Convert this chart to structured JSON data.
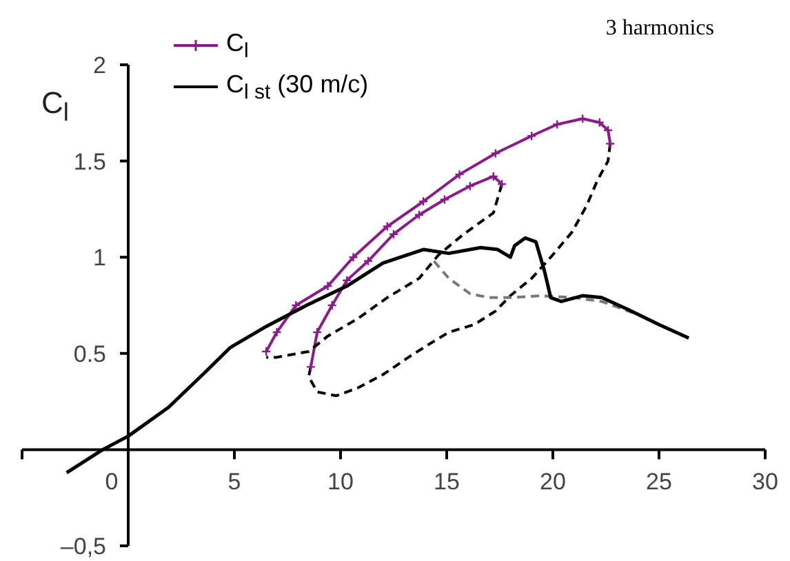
{
  "chart_data": {
    "type": "line",
    "ylabel": "C$_{l}$",
    "annotations": [
      "3 harmonics"
    ],
    "xlim": [
      -5,
      30
    ],
    "xticks": [
      {
        "value": -5,
        "label": null
      },
      0,
      5,
      10,
      15,
      20,
      25,
      30
    ],
    "ylim": [
      -0.5,
      2
    ],
    "yticks": [
      {
        "value": -0.5,
        "label": "–0,5"
      },
      0.5,
      1,
      1.5,
      2
    ],
    "grid": false,
    "legend": "top left",
    "series": [
      {
        "name": "C$_{l}$",
        "color": "#8b1a8b",
        "marker": "cross",
        "line_style": "solid",
        "x": [
          6.5,
          7,
          7.9,
          9.4,
          10.6,
          12.2,
          13.9,
          15.6,
          17.3,
          19,
          20.2,
          21.4,
          22.2,
          22.6,
          22.7
        ],
        "values": [
          0.51,
          0.61,
          0.75,
          0.85,
          1.0,
          1.16,
          1.29,
          1.43,
          1.54,
          1.63,
          1.69,
          1.72,
          1.7,
          1.66,
          1.59
        ]
      },
      {
        "color": "#8b1a8b",
        "marker": "cross",
        "line_style": "solid",
        "x": [
          8.6,
          8.9,
          9.6,
          10.3,
          11.3,
          12.5,
          13.7,
          14.9,
          16.1,
          17.2,
          17.6
        ],
        "values": [
          0.43,
          0.61,
          0.75,
          0.88,
          0.98,
          1.12,
          1.22,
          1.3,
          1.37,
          1.42,
          1.38
        ]
      },
      {
        "color": "#000000",
        "marker": "none",
        "line_style": "dashed",
        "x": [
          22.7,
          22.6,
          22.1,
          21.6,
          20.9,
          19.9,
          19,
          18,
          17.3,
          16.3,
          15.1,
          14.2,
          13.2,
          12,
          10.8,
          9.8,
          8.9,
          8.5,
          8.6
        ],
        "values": [
          1.59,
          1.5,
          1.4,
          1.27,
          1.13,
          1.0,
          0.89,
          0.8,
          0.72,
          0.65,
          0.61,
          0.55,
          0.48,
          0.39,
          0.32,
          0.28,
          0.3,
          0.38,
          0.43
        ]
      },
      {
        "color": "#000000",
        "marker": "none",
        "line_style": "dashed",
        "x": [
          17.6,
          17.2,
          15.8,
          14.6,
          13.7,
          12.2,
          10.8,
          9.4,
          8.5,
          7,
          6.5
        ],
        "values": [
          1.38,
          1.23,
          1.12,
          1.01,
          0.89,
          0.79,
          0.68,
          0.59,
          0.51,
          0.48,
          0.48
        ]
      },
      {
        "color": "#777777",
        "marker": "none",
        "line_style": "dashed",
        "x": [
          14.4,
          15.1,
          16.1,
          17,
          18,
          19.4,
          21,
          22.3,
          23.8
        ],
        "values": [
          0.98,
          0.89,
          0.81,
          0.79,
          0.79,
          0.8,
          0.79,
          0.77,
          0.71
        ]
      },
      {
        "name": "C$_{l st}$ (30 m/c)",
        "color": "#000000",
        "marker": "none",
        "line_style": "solid",
        "x": [
          -2.9,
          -1.2,
          0,
          1.9,
          3.6,
          4.8,
          6.5,
          8.4,
          10.3,
          12,
          13.9,
          15.1,
          16.6,
          17.4,
          18,
          18.2,
          18.7,
          19.2,
          19.6,
          19.9,
          20.4,
          21.4,
          22.3,
          23.5,
          25,
          26.4
        ],
        "values": [
          -0.12,
          0,
          0.07,
          0.22,
          0.4,
          0.53,
          0.64,
          0.75,
          0.85,
          0.97,
          1.04,
          1.02,
          1.05,
          1.04,
          1.0,
          1.06,
          1.1,
          1.08,
          0.93,
          0.79,
          0.77,
          0.8,
          0.79,
          0.73,
          0.65,
          0.58
        ]
      }
    ]
  }
}
